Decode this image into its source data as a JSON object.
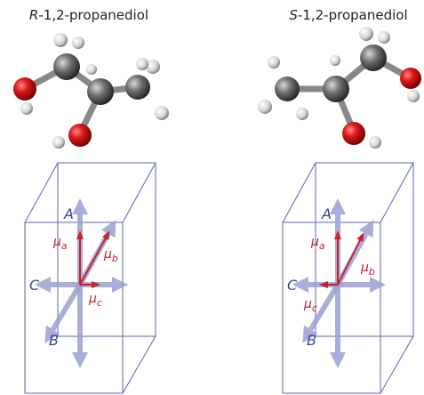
{
  "panels": [
    {
      "title": {
        "prefix": "R",
        "rest": "-1,2-propanediol"
      },
      "axes": {
        "A": "A",
        "B": "B",
        "C": "C"
      },
      "dipoles": {
        "a": {
          "symbol": "μ",
          "subscript": "a"
        },
        "b": {
          "symbol": "μ",
          "subscript": "b"
        },
        "c": {
          "symbol": "μ",
          "subscript": "c"
        }
      }
    },
    {
      "title": {
        "prefix": "S",
        "rest": "-1,2-propanediol"
      },
      "axes": {
        "A": "A",
        "B": "B",
        "C": "C"
      },
      "dipoles": {
        "a": {
          "symbol": "μ",
          "subscript": "a"
        },
        "b": {
          "symbol": "μ",
          "subscript": "b"
        },
        "c": {
          "symbol": "μ",
          "subscript": "c"
        }
      }
    }
  ]
}
